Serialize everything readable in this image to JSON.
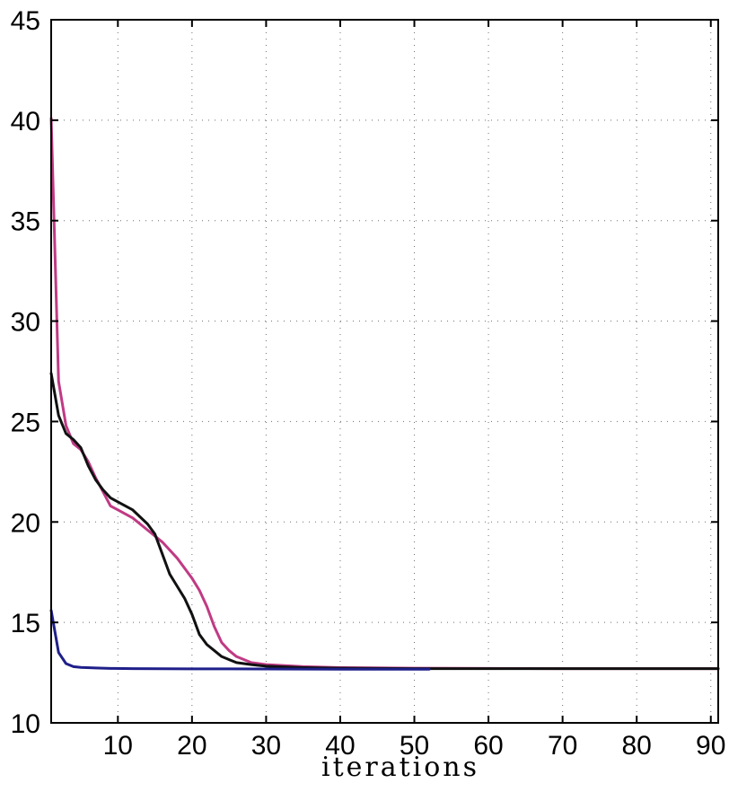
{
  "chart_data": {
    "type": "line",
    "title": "",
    "xlabel": "iterations",
    "ylabel": "",
    "xlim": [
      1,
      91
    ],
    "ylim": [
      10,
      45
    ],
    "grid": true,
    "x_ticks": [
      10,
      20,
      30,
      40,
      50,
      60,
      70,
      80,
      90
    ],
    "y_ticks": [
      10,
      15,
      20,
      25,
      30,
      35,
      40,
      45
    ],
    "x_tick_labels": [
      "10",
      "20",
      "30",
      "40",
      "50",
      "60",
      "70",
      "80",
      "90"
    ],
    "y_tick_labels": [
      "10",
      "15",
      "20",
      "25",
      "30",
      "35",
      "40",
      "45"
    ],
    "series": [
      {
        "color": "#c03a84",
        "points": [
          [
            1,
            40.1
          ],
          [
            2,
            27.0
          ],
          [
            3,
            24.8
          ],
          [
            4,
            23.9
          ],
          [
            5,
            23.6
          ],
          [
            6,
            23.0
          ],
          [
            7,
            22.2
          ],
          [
            8,
            21.5
          ],
          [
            9,
            20.8
          ],
          [
            10,
            20.6
          ],
          [
            12,
            20.2
          ],
          [
            14,
            19.6
          ],
          [
            16,
            19.0
          ],
          [
            18,
            18.2
          ],
          [
            20,
            17.2
          ],
          [
            21,
            16.6
          ],
          [
            22,
            15.8
          ],
          [
            23,
            14.8
          ],
          [
            24,
            14.0
          ],
          [
            25,
            13.6
          ],
          [
            26,
            13.3
          ],
          [
            28,
            13.0
          ],
          [
            30,
            12.9
          ],
          [
            35,
            12.8
          ],
          [
            40,
            12.75
          ],
          [
            50,
            12.72
          ],
          [
            60,
            12.71
          ],
          [
            70,
            12.7
          ],
          [
            80,
            12.7
          ],
          [
            91,
            12.7
          ]
        ]
      },
      {
        "color": "#111111",
        "points": [
          [
            1,
            27.4
          ],
          [
            2,
            25.3
          ],
          [
            3,
            24.4
          ],
          [
            4,
            24.1
          ],
          [
            5,
            23.7
          ],
          [
            6,
            22.8
          ],
          [
            7,
            22.1
          ],
          [
            8,
            21.6
          ],
          [
            9,
            21.2
          ],
          [
            10,
            21.0
          ],
          [
            12,
            20.6
          ],
          [
            14,
            19.9
          ],
          [
            15,
            19.4
          ],
          [
            16,
            18.4
          ],
          [
            17,
            17.4
          ],
          [
            18,
            16.8
          ],
          [
            19,
            16.2
          ],
          [
            20,
            15.4
          ],
          [
            21,
            14.4
          ],
          [
            22,
            13.9
          ],
          [
            23,
            13.6
          ],
          [
            24,
            13.3
          ],
          [
            26,
            13.0
          ],
          [
            28,
            12.9
          ],
          [
            30,
            12.82
          ],
          [
            35,
            12.75
          ],
          [
            40,
            12.72
          ],
          [
            50,
            12.7
          ],
          [
            60,
            12.7
          ],
          [
            70,
            12.7
          ],
          [
            80,
            12.7
          ],
          [
            91,
            12.7
          ]
        ]
      },
      {
        "color": "#1f1f8a",
        "points": [
          [
            1,
            15.6
          ],
          [
            2,
            13.5
          ],
          [
            3,
            12.95
          ],
          [
            4,
            12.8
          ],
          [
            5,
            12.76
          ],
          [
            7,
            12.73
          ],
          [
            9,
            12.71
          ],
          [
            12,
            12.7
          ],
          [
            20,
            12.69
          ],
          [
            30,
            12.68
          ],
          [
            40,
            12.67
          ],
          [
            52,
            12.67
          ]
        ]
      }
    ]
  }
}
